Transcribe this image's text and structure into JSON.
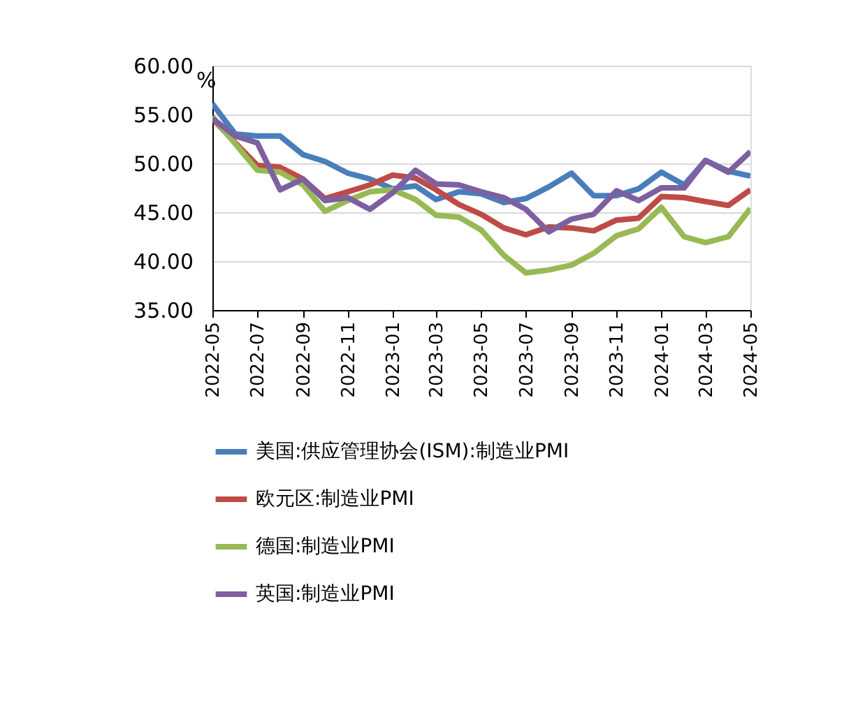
{
  "chart_data": {
    "type": "line",
    "ylabel": "%",
    "x": [
      "2022-05",
      "2022-06",
      "2022-07",
      "2022-08",
      "2022-09",
      "2022-10",
      "2022-11",
      "2022-12",
      "2023-01",
      "2023-02",
      "2023-03",
      "2023-04",
      "2023-05",
      "2023-06",
      "2023-07",
      "2023-08",
      "2023-09",
      "2023-10",
      "2023-11",
      "2023-12",
      "2024-01",
      "2024-02",
      "2024-03",
      "2024-04",
      "2024-05"
    ],
    "series": [
      {
        "name": "美国:供应管理协会(ISM):制造业PMI",
        "color": "#4a7ebb",
        "values": [
          56.1,
          53.0,
          52.8,
          52.8,
          50.9,
          50.2,
          49.0,
          48.4,
          47.4,
          47.7,
          46.3,
          47.1,
          46.9,
          46.0,
          46.4,
          47.6,
          49.0,
          46.7,
          46.7,
          47.4,
          49.1,
          47.8,
          50.3,
          49.2,
          48.7
        ]
      },
      {
        "name": "欧元区:制造业PMI",
        "color": "#be4b48",
        "values": [
          54.6,
          52.1,
          49.8,
          49.6,
          48.4,
          46.4,
          47.1,
          47.8,
          48.8,
          48.5,
          47.3,
          45.8,
          44.8,
          43.4,
          42.7,
          43.5,
          43.4,
          43.1,
          44.2,
          44.4,
          46.6,
          46.5,
          46.1,
          45.7,
          47.3
        ]
      },
      {
        "name": "德国:制造业PMI",
        "color": "#98b954",
        "values": [
          54.8,
          52.0,
          49.3,
          49.1,
          47.8,
          45.1,
          46.2,
          47.1,
          47.3,
          46.3,
          44.7,
          44.5,
          43.2,
          40.6,
          38.8,
          39.1,
          39.6,
          40.8,
          42.6,
          43.3,
          45.5,
          42.5,
          41.9,
          42.5,
          45.4
        ]
      },
      {
        "name": "英国:制造业PMI",
        "color": "#7d60a0",
        "values": [
          54.6,
          52.8,
          52.1,
          47.3,
          48.4,
          46.2,
          46.5,
          45.3,
          47.0,
          49.3,
          47.9,
          47.8,
          47.1,
          46.5,
          45.3,
          43.0,
          44.3,
          44.8,
          47.2,
          46.2,
          47.5,
          47.5,
          50.3,
          49.1,
          51.2
        ]
      }
    ],
    "ylim": [
      35,
      60
    ],
    "yticks": [
      {
        "value": 35,
        "label": "35.00"
      },
      {
        "value": 40,
        "label": "40.00"
      },
      {
        "value": 45,
        "label": "45.00"
      },
      {
        "value": 50,
        "label": "50.00"
      },
      {
        "value": 55,
        "label": "55.00"
      },
      {
        "value": 60,
        "label": "60.00"
      }
    ],
    "xlim": [
      "2022-05",
      "2024-05"
    ],
    "xticks": [
      "2022-05",
      "2022-07",
      "2022-09",
      "2022-11",
      "2023-01",
      "2023-03",
      "2023-05",
      "2023-07",
      "2023-09",
      "2023-11",
      "2024-01",
      "2024-03",
      "2024-05"
    ],
    "grid": "y",
    "legend": "bottom",
    "line_style": "solid",
    "marker": "none"
  }
}
